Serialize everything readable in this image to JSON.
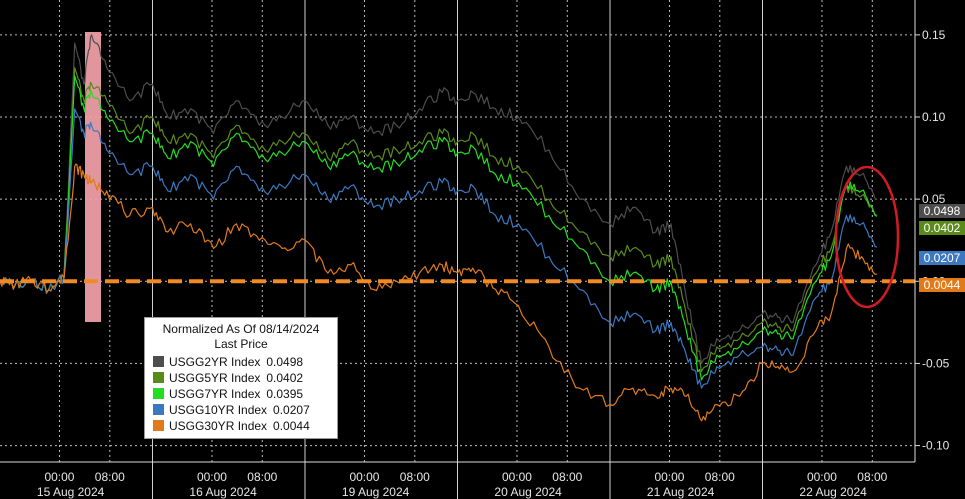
{
  "chart_data": {
    "type": "line",
    "title": "",
    "xlabel": "",
    "ylabel": "",
    "ylim": [
      -0.11,
      0.17
    ],
    "y_ticks": [
      "0.15",
      "0.10",
      "0.05",
      "0.00",
      "-0.05",
      "-0.10"
    ],
    "y_tick_values": [
      0.15,
      0.1,
      0.05,
      0.0,
      -0.05,
      -0.1
    ],
    "days": [
      "15 Aug 2024",
      "16 Aug 2024",
      "19 Aug 2024",
      "20 Aug 2024",
      "21 Aug 2024",
      "22 Aug 2024"
    ],
    "time_ticks": [
      "00:00",
      "08:00"
    ],
    "grid": true,
    "reference_line": 0.0,
    "legend": {
      "placement": "bottom-left",
      "title": "Normalized As Of 08/14/2024",
      "subtitle": "Last Price"
    },
    "x": [
      0,
      0.1,
      0.2,
      0.32,
      0.42,
      0.49,
      0.55,
      0.6,
      0.7,
      0.85,
      1,
      1.1,
      1.25,
      1.4,
      1.55,
      1.7,
      1.85,
      2,
      2.15,
      2.3,
      2.45,
      2.6,
      2.75,
      2.9,
      3,
      3.1,
      3.25,
      3.4,
      3.6,
      3.8,
      4,
      4.15,
      4.3,
      4.4,
      4.5,
      4.6,
      4.7,
      4.85,
      5,
      5.1,
      5.2,
      5.35,
      5.45,
      5.55,
      5.65,
      5.75
    ],
    "series": [
      {
        "name": "USGG2YR Index",
        "last": "0.0498",
        "color": "#4d4d4d",
        "values": [
          0,
          -0.002,
          0.001,
          -0.005,
          0.003,
          0.145,
          0.12,
          0.15,
          0.13,
          0.11,
          0.12,
          0.1,
          0.105,
          0.09,
          0.11,
          0.095,
          0.1,
          0.11,
          0.095,
          0.1,
          0.09,
          0.095,
          0.105,
          0.115,
          0.11,
          0.115,
          0.105,
          0.1,
          0.08,
          0.05,
          0.035,
          0.045,
          0.03,
          0.035,
          -0.01,
          -0.05,
          -0.035,
          -0.03,
          -0.02,
          -0.022,
          -0.025,
          0.01,
          0.03,
          0.07,
          0.065,
          0.0498
        ]
      },
      {
        "name": "USGG5YR Index",
        "last": "0.0402",
        "color": "#5a8a1a",
        "values": [
          0,
          -0.002,
          0.001,
          -0.005,
          0.002,
          0.13,
          0.11,
          0.12,
          0.11,
          0.09,
          0.1,
          0.085,
          0.09,
          0.075,
          0.095,
          0.08,
          0.085,
          0.09,
          0.075,
          0.085,
          0.075,
          0.08,
          0.085,
          0.09,
          0.085,
          0.09,
          0.075,
          0.07,
          0.05,
          0.03,
          0.015,
          0.02,
          0.01,
          0.015,
          -0.02,
          -0.055,
          -0.04,
          -0.035,
          -0.025,
          -0.028,
          -0.03,
          0.005,
          0.02,
          0.058,
          0.052,
          0.0402
        ]
      },
      {
        "name": "USGG7YR Index",
        "last": "0.0395",
        "color": "#22dd22",
        "values": [
          0,
          -0.002,
          0.001,
          -0.005,
          0.002,
          0.125,
          0.105,
          0.115,
          0.1,
          0.085,
          0.09,
          0.075,
          0.085,
          0.07,
          0.09,
          0.075,
          0.078,
          0.085,
          0.07,
          0.078,
          0.068,
          0.072,
          0.08,
          0.085,
          0.078,
          0.082,
          0.065,
          0.06,
          0.04,
          0.02,
          0.0,
          0.005,
          -0.005,
          0.0,
          -0.03,
          -0.06,
          -0.045,
          -0.04,
          -0.03,
          -0.032,
          -0.035,
          0.0,
          0.015,
          0.06,
          0.055,
          0.0395
        ]
      },
      {
        "name": "USGG10YR Index",
        "last": "0.0207",
        "color": "#3b78c0",
        "values": [
          0,
          -0.002,
          0.001,
          -0.005,
          0.002,
          0.105,
          0.09,
          0.095,
          0.08,
          0.065,
          0.07,
          0.055,
          0.065,
          0.05,
          0.07,
          0.055,
          0.058,
          0.065,
          0.05,
          0.058,
          0.045,
          0.05,
          0.055,
          0.06,
          0.055,
          0.058,
          0.04,
          0.035,
          0.015,
          -0.005,
          -0.025,
          -0.02,
          -0.03,
          -0.025,
          -0.045,
          -0.065,
          -0.052,
          -0.045,
          -0.04,
          -0.042,
          -0.045,
          -0.01,
          0.0,
          0.04,
          0.035,
          0.0207
        ]
      },
      {
        "name": "USGG30YR Index",
        "last": "0.0044",
        "color": "#e07a1a",
        "values": [
          0,
          -0.002,
          0.001,
          -0.005,
          0.002,
          0.07,
          0.065,
          0.06,
          0.055,
          0.04,
          0.045,
          0.03,
          0.035,
          0.02,
          0.035,
          0.025,
          0.02,
          0.025,
          0.005,
          0.01,
          -0.005,
          0.0,
          0.005,
          0.01,
          0.005,
          0.008,
          -0.005,
          -0.015,
          -0.04,
          -0.065,
          -0.075,
          -0.065,
          -0.07,
          -0.065,
          -0.07,
          -0.085,
          -0.075,
          -0.07,
          -0.05,
          -0.052,
          -0.055,
          -0.03,
          -0.02,
          0.02,
          0.015,
          0.0044
        ]
      }
    ]
  }
}
